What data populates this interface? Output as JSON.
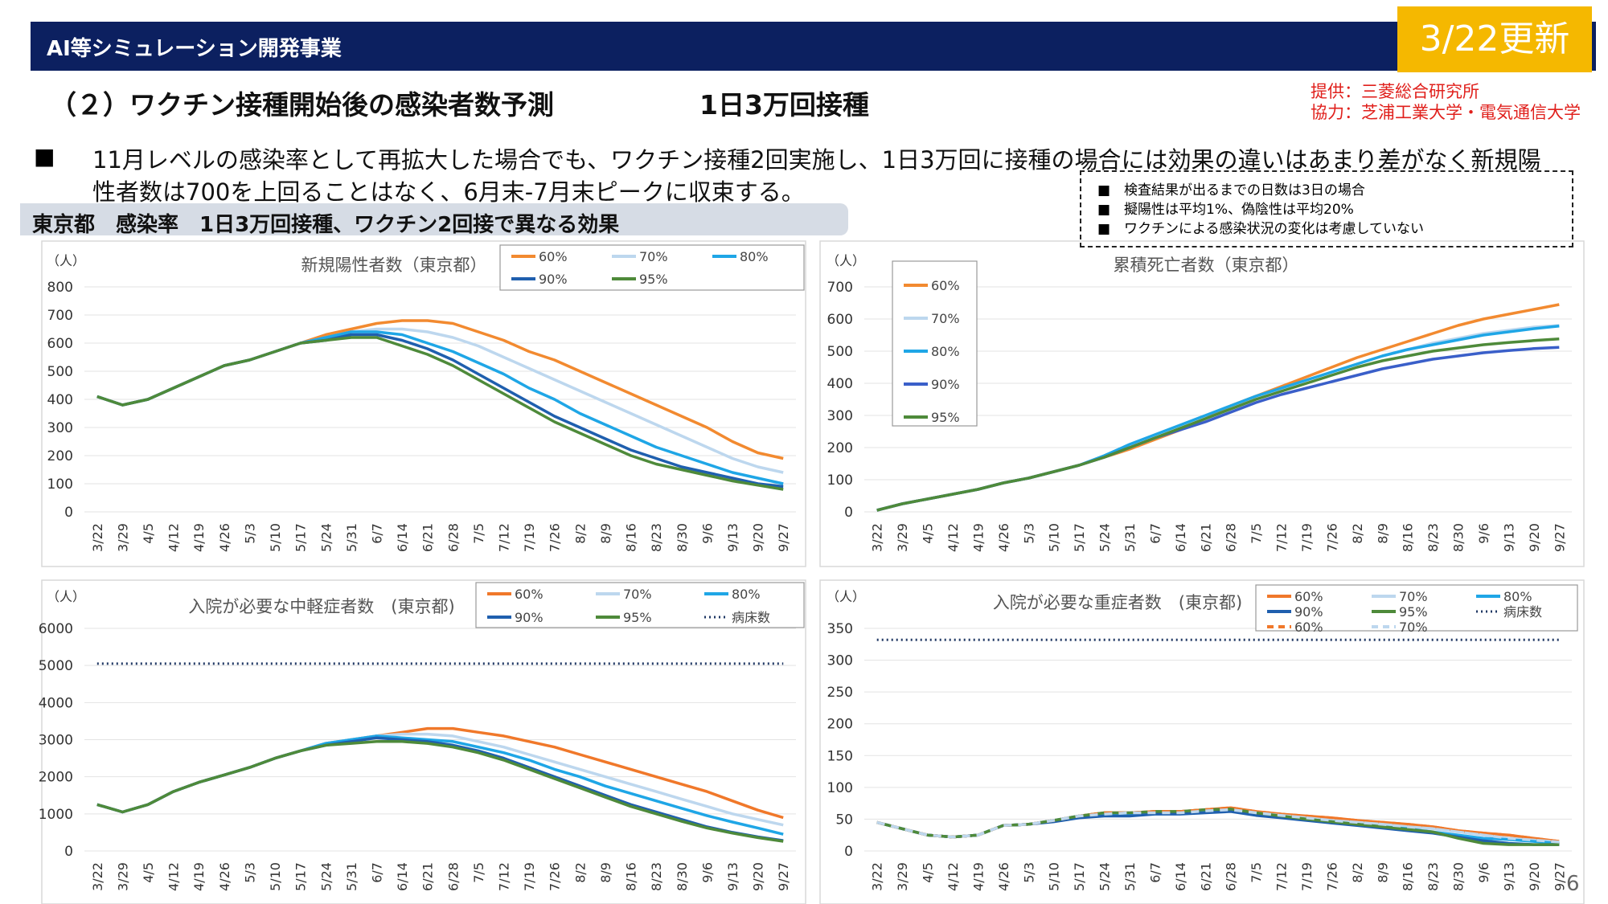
{
  "header": {
    "title": "AI等シミュレーション開発事業",
    "update": "3/22更新"
  },
  "subtitle": "（２）ワクチン接種開始後の感染者数予測",
  "subtitle2": "1日3万回接種",
  "sources": [
    "提供：三菱総合研究所",
    "協力：芝浦工業大学・電気通信大学"
  ],
  "bullet": "■",
  "summary": [
    "11月レベルの感染率として再拡大した場合でも、ワクチン接種2回実施し、1日3万回に接種の場合には効果の違いはあまり差がなく新規陽",
    "性者数は700を上回ることはなく、6月末-7月末ピークに収束する。"
  ],
  "notes": [
    "■　検査結果が出るまでの日数は3日の場合",
    "■　擬陽性は平均1%、偽陰性は平均20%",
    "■　ワクチンによる感染状況の変化は考慮していない"
  ],
  "section": "東京都　感染率　1日3万回接種、ワクチン2回接で異なる効果",
  "page_number": "6",
  "chart_data": [
    {
      "type": "line",
      "title": "新規陽性者数（東京都）",
      "ylabel": "（人）",
      "grid": true,
      "categories": [
        "3/22",
        "3/29",
        "4/5",
        "4/12",
        "4/19",
        "4/26",
        "5/3",
        "5/10",
        "5/17",
        "5/24",
        "5/31",
        "6/7",
        "6/14",
        "6/21",
        "6/28",
        "7/5",
        "7/12",
        "7/19",
        "7/26",
        "8/2",
        "8/9",
        "8/16",
        "8/23",
        "8/30",
        "9/6",
        "9/13",
        "9/20",
        "9/27"
      ],
      "ylim": [
        0,
        800
      ],
      "yticks": [
        0,
        100,
        200,
        300,
        400,
        500,
        600,
        700,
        800
      ],
      "series": [
        {
          "name": "60%",
          "color": "#f28a30",
          "values": [
            410,
            380,
            400,
            440,
            480,
            520,
            540,
            570,
            600,
            630,
            650,
            670,
            680,
            680,
            670,
            640,
            610,
            570,
            540,
            500,
            460,
            420,
            380,
            340,
            300,
            250,
            210,
            190
          ]
        },
        {
          "name": "70%",
          "color": "#bdd7ee",
          "values": [
            410,
            380,
            400,
            440,
            480,
            520,
            540,
            570,
            600,
            620,
            640,
            650,
            650,
            640,
            620,
            590,
            550,
            510,
            470,
            430,
            390,
            350,
            310,
            270,
            230,
            190,
            160,
            140
          ]
        },
        {
          "name": "80%",
          "color": "#1fa6e6",
          "values": [
            410,
            380,
            400,
            440,
            480,
            520,
            540,
            570,
            600,
            620,
            640,
            640,
            630,
            600,
            570,
            530,
            490,
            440,
            400,
            350,
            310,
            270,
            230,
            200,
            170,
            140,
            120,
            100
          ]
        },
        {
          "name": "90%",
          "color": "#1f5fae",
          "values": [
            410,
            380,
            400,
            440,
            480,
            520,
            540,
            570,
            600,
            610,
            630,
            630,
            610,
            580,
            540,
            490,
            440,
            390,
            340,
            300,
            260,
            220,
            190,
            160,
            140,
            120,
            100,
            90
          ]
        },
        {
          "name": "95%",
          "color": "#4e8a3a",
          "values": [
            410,
            380,
            400,
            440,
            480,
            520,
            540,
            570,
            600,
            610,
            620,
            620,
            590,
            560,
            520,
            470,
            420,
            370,
            320,
            280,
            240,
            200,
            170,
            150,
            130,
            110,
            95,
            80
          ]
        }
      ]
    },
    {
      "type": "line",
      "title": "累積死亡者数（東京都）",
      "ylabel": "（人）",
      "grid": true,
      "categories": [
        "3/22",
        "3/29",
        "4/5",
        "4/12",
        "4/19",
        "4/26",
        "5/3",
        "5/10",
        "5/17",
        "5/24",
        "5/31",
        "6/7",
        "6/14",
        "6/21",
        "6/28",
        "7/5",
        "7/12",
        "7/19",
        "7/26",
        "8/2",
        "8/9",
        "8/16",
        "8/23",
        "8/30",
        "9/6",
        "9/13",
        "9/20",
        "9/27"
      ],
      "ylim": [
        0,
        700
      ],
      "yticks": [
        0,
        100,
        200,
        300,
        400,
        500,
        600,
        700
      ],
      "series": [
        {
          "name": "60%",
          "color": "#f28a30",
          "values": [
            5,
            25,
            40,
            55,
            70,
            90,
            105,
            125,
            145,
            170,
            195,
            225,
            255,
            290,
            330,
            360,
            390,
            420,
            450,
            480,
            505,
            530,
            555,
            580,
            600,
            615,
            630,
            645
          ]
        },
        {
          "name": "70%",
          "color": "#bdd7ee",
          "values": [
            5,
            25,
            40,
            55,
            70,
            90,
            105,
            125,
            145,
            170,
            200,
            230,
            260,
            290,
            320,
            350,
            380,
            410,
            435,
            460,
            485,
            505,
            525,
            540,
            555,
            565,
            575,
            580
          ]
        },
        {
          "name": "80%",
          "color": "#1fa6e6",
          "values": [
            5,
            25,
            40,
            55,
            70,
            90,
            105,
            125,
            145,
            175,
            210,
            240,
            270,
            300,
            330,
            360,
            385,
            410,
            435,
            460,
            485,
            505,
            520,
            535,
            550,
            560,
            570,
            578
          ]
        },
        {
          "name": "90%",
          "color": "#3a5fc9",
          "values": [
            5,
            25,
            40,
            55,
            70,
            90,
            105,
            125,
            145,
            170,
            200,
            230,
            255,
            280,
            310,
            340,
            365,
            385,
            405,
            425,
            445,
            460,
            475,
            485,
            495,
            502,
            508,
            512
          ]
        },
        {
          "name": "95%",
          "color": "#4e8a3a",
          "values": [
            5,
            25,
            40,
            55,
            70,
            90,
            105,
            125,
            145,
            170,
            200,
            230,
            260,
            290,
            320,
            350,
            375,
            400,
            425,
            450,
            470,
            485,
            500,
            510,
            520,
            527,
            533,
            538
          ]
        }
      ]
    },
    {
      "type": "line",
      "title": "入院が必要な中軽症者数　(東京都)",
      "ylabel": "（人）",
      "grid": true,
      "categories": [
        "3/22",
        "3/29",
        "4/5",
        "4/12",
        "4/19",
        "4/26",
        "5/3",
        "5/10",
        "5/17",
        "5/24",
        "5/31",
        "6/7",
        "6/14",
        "6/21",
        "6/28",
        "7/5",
        "7/12",
        "7/19",
        "7/26",
        "8/2",
        "8/9",
        "8/16",
        "8/23",
        "8/30",
        "9/6",
        "9/13",
        "9/20",
        "9/27"
      ],
      "ylim": [
        0,
        6000
      ],
      "yticks": [
        0,
        1000,
        2000,
        3000,
        4000,
        5000,
        6000
      ],
      "series": [
        {
          "name": "60%",
          "color": "#f0782a",
          "values": [
            1250,
            1050,
            1250,
            1600,
            1850,
            2050,
            2250,
            2500,
            2700,
            2900,
            3000,
            3100,
            3200,
            3300,
            3300,
            3200,
            3100,
            2950,
            2800,
            2600,
            2400,
            2200,
            2000,
            1800,
            1600,
            1350,
            1100,
            900
          ]
        },
        {
          "name": "70%",
          "color": "#bdd7ee",
          "values": [
            1250,
            1050,
            1250,
            1600,
            1850,
            2050,
            2250,
            2500,
            2700,
            2900,
            3000,
            3100,
            3150,
            3150,
            3100,
            2950,
            2800,
            2600,
            2400,
            2200,
            2000,
            1800,
            1600,
            1400,
            1200,
            1000,
            850,
            700
          ]
        },
        {
          "name": "80%",
          "color": "#1fa6e6",
          "values": [
            1250,
            1050,
            1250,
            1600,
            1850,
            2050,
            2250,
            2500,
            2700,
            2900,
            3000,
            3100,
            3050,
            3000,
            2950,
            2800,
            2650,
            2450,
            2200,
            2000,
            1750,
            1550,
            1350,
            1150,
            950,
            780,
            620,
            450
          ]
        },
        {
          "name": "90%",
          "color": "#1f5fae",
          "values": [
            1250,
            1050,
            1250,
            1600,
            1850,
            2050,
            2250,
            2500,
            2700,
            2850,
            2950,
            3050,
            3000,
            2950,
            2850,
            2700,
            2500,
            2250,
            2000,
            1750,
            1500,
            1250,
            1050,
            850,
            650,
            500,
            380,
            280
          ]
        },
        {
          "name": "95%",
          "color": "#4e8a3a",
          "values": [
            1250,
            1050,
            1250,
            1600,
            1850,
            2050,
            2250,
            2500,
            2700,
            2850,
            2900,
            2950,
            2950,
            2900,
            2800,
            2650,
            2450,
            2200,
            1950,
            1700,
            1450,
            1200,
            1000,
            800,
            620,
            480,
            360,
            260
          ]
        },
        {
          "name": "病床数",
          "color": "#203864",
          "dotted": true,
          "values": [
            5050,
            5050,
            5050,
            5050,
            5050,
            5050,
            5050,
            5050,
            5050,
            5050,
            5050,
            5050,
            5050,
            5050,
            5050,
            5050,
            5050,
            5050,
            5050,
            5050,
            5050,
            5050,
            5050,
            5050,
            5050,
            5050,
            5050,
            5050
          ]
        }
      ]
    },
    {
      "type": "line",
      "title": "入院が必要な重症者数　(東京都)",
      "ylabel": "（人）",
      "grid": true,
      "categories": [
        "3/22",
        "3/29",
        "4/5",
        "4/12",
        "4/19",
        "4/26",
        "5/3",
        "5/10",
        "5/17",
        "5/24",
        "5/31",
        "6/7",
        "6/14",
        "6/21",
        "6/28",
        "7/5",
        "7/12",
        "7/19",
        "7/26",
        "8/2",
        "8/9",
        "8/16",
        "8/23",
        "8/30",
        "9/6",
        "9/13",
        "9/20",
        "9/27"
      ],
      "ylim": [
        0,
        350
      ],
      "yticks": [
        0,
        50,
        100,
        150,
        200,
        250,
        300,
        350
      ],
      "series": [
        {
          "name": "60%",
          "color": "#f0782a",
          "values": [
            45,
            35,
            25,
            22,
            25,
            40,
            42,
            48,
            55,
            60,
            60,
            62,
            62,
            65,
            68,
            62,
            58,
            55,
            52,
            48,
            45,
            42,
            38,
            32,
            28,
            25,
            20,
            15
          ]
        },
        {
          "name": "70%",
          "color": "#bdd7ee",
          "values": [
            45,
            35,
            25,
            22,
            25,
            40,
            42,
            48,
            55,
            58,
            60,
            60,
            60,
            63,
            65,
            60,
            56,
            52,
            48,
            45,
            42,
            38,
            35,
            30,
            25,
            20,
            17,
            14
          ]
        },
        {
          "name": "80%",
          "color": "#1fa6e6",
          "values": [
            45,
            35,
            25,
            22,
            25,
            40,
            42,
            48,
            55,
            58,
            58,
            60,
            60,
            62,
            64,
            58,
            54,
            50,
            46,
            42,
            38,
            35,
            30,
            25,
            20,
            18,
            15,
            12
          ]
        },
        {
          "name": "90%",
          "color": "#1f5fae",
          "values": [
            45,
            35,
            25,
            22,
            25,
            40,
            42,
            46,
            52,
            55,
            55,
            58,
            58,
            60,
            62,
            56,
            52,
            48,
            44,
            40,
            36,
            32,
            28,
            22,
            16,
            12,
            10,
            10
          ]
        },
        {
          "name": "95%",
          "color": "#4e8a3a",
          "values": [
            45,
            35,
            25,
            22,
            25,
            40,
            42,
            48,
            55,
            60,
            60,
            62,
            62,
            65,
            66,
            60,
            55,
            50,
            46,
            42,
            38,
            34,
            30,
            20,
            12,
            10,
            10,
            10
          ]
        },
        {
          "name": "病床数",
          "color": "#203864",
          "dotted": true,
          "values": [
            332,
            332,
            332,
            332,
            332,
            332,
            332,
            332,
            332,
            332,
            332,
            332,
            332,
            332,
            332,
            332,
            332,
            332,
            332,
            332,
            332,
            332,
            332,
            332,
            332,
            332,
            332,
            332
          ]
        },
        {
          "name": "60%",
          "color": "#f0782a",
          "dashed": true,
          "values": [
            45,
            35,
            25,
            22,
            25,
            40,
            42,
            48,
            55,
            60,
            60,
            62,
            62,
            65,
            68,
            62,
            58,
            55,
            52,
            48,
            45,
            42,
            38,
            32,
            28,
            25,
            20,
            15
          ]
        },
        {
          "name": "70%",
          "color": "#bdd7ee",
          "dashed": true,
          "values": [
            45,
            35,
            25,
            22,
            25,
            40,
            42,
            48,
            55,
            58,
            60,
            60,
            60,
            63,
            65,
            60,
            56,
            52,
            48,
            45,
            42,
            38,
            35,
            30,
            25,
            20,
            17,
            14
          ]
        }
      ]
    }
  ]
}
